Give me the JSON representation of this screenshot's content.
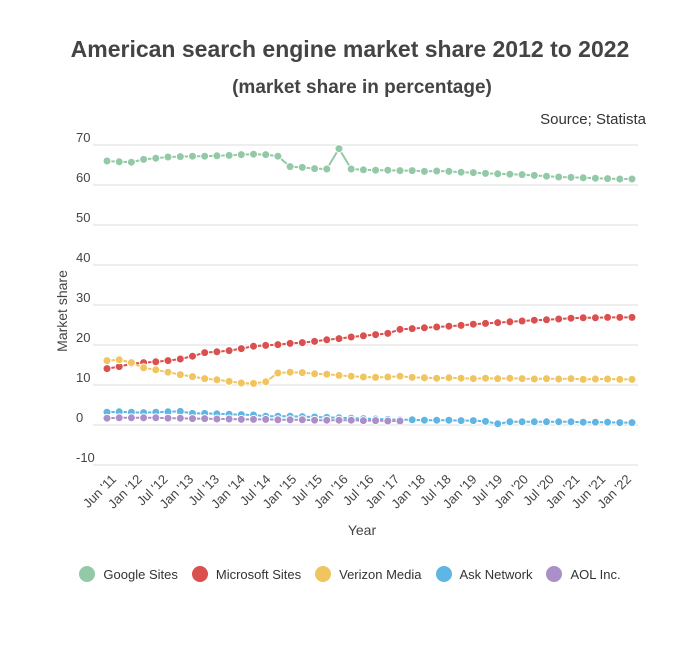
{
  "chart_data": {
    "type": "line",
    "title": "American search engine market share 2012 to 2022",
    "subtitle": "(market share in percentage)",
    "source": "Source; Statista",
    "xlabel": "Year",
    "ylabel": "Market share",
    "ylim": [
      -10,
      70
    ],
    "yticks": [
      70,
      60,
      50,
      40,
      30,
      20,
      10,
      0,
      -10
    ],
    "grid": true,
    "legend_position": "bottom",
    "x_tick_labels": [
      "Jun '11",
      "Jan '12",
      "Jul '12",
      "Jan '13",
      "Jul '13",
      "Jan '14",
      "Jul '14",
      "Jan '15",
      "Jul '15",
      "Jan '16",
      "Jul '16",
      "Jan '17",
      "Jan '18",
      "Jul '18",
      "Jan '19",
      "Jul '19",
      "Jan '20",
      "Jul '20",
      "Jan '21",
      "Jun '21",
      "Jan '22"
    ],
    "series": [
      {
        "name": "Google Sites",
        "color": "#93c9a7",
        "values": [
          66.0,
          65.8,
          65.7,
          66.4,
          66.7,
          67.0,
          67.1,
          67.2,
          67.2,
          67.3,
          67.4,
          67.6,
          67.7,
          67.6,
          67.2,
          64.6,
          64.4,
          64.1,
          64.0,
          69.1,
          64.0,
          63.8,
          63.7,
          63.7,
          63.6,
          63.6,
          63.4,
          63.5,
          63.4,
          63.2,
          63.1,
          62.9,
          62.8,
          62.7,
          62.6,
          62.4,
          62.2,
          62.0,
          61.9,
          61.8,
          61.7,
          61.6,
          61.5,
          61.5
        ]
      },
      {
        "name": "Microsoft Sites",
        "color": "#d9504f",
        "values": [
          14.1,
          14.6,
          15.3,
          15.6,
          15.8,
          16.1,
          16.5,
          17.2,
          18.1,
          18.3,
          18.6,
          19.1,
          19.7,
          19.9,
          20.1,
          20.4,
          20.6,
          20.9,
          21.3,
          21.6,
          22.0,
          22.3,
          22.6,
          22.9,
          23.9,
          24.1,
          24.3,
          24.5,
          24.7,
          24.9,
          25.2,
          25.4,
          25.6,
          25.8,
          26.0,
          26.2,
          26.3,
          26.5,
          26.7,
          26.8,
          26.8,
          26.9,
          26.9,
          26.9
        ]
      },
      {
        "name": "Verizon Media",
        "color": "#f0c55f",
        "values": [
          16.1,
          16.3,
          15.6,
          14.3,
          13.8,
          13.2,
          12.6,
          12.1,
          11.6,
          11.3,
          10.9,
          10.5,
          10.4,
          10.8,
          13.0,
          13.2,
          13.1,
          12.8,
          12.7,
          12.4,
          12.2,
          12.0,
          11.9,
          12.0,
          12.2,
          11.9,
          11.8,
          11.7,
          11.8,
          11.7,
          11.6,
          11.7,
          11.6,
          11.7,
          11.6,
          11.5,
          11.6,
          11.5,
          11.6,
          11.4,
          11.5,
          11.5,
          11.4,
          11.4
        ]
      },
      {
        "name": "Ask Network",
        "color": "#5fb6e4",
        "values": [
          3.2,
          3.3,
          3.2,
          3.1,
          3.2,
          3.3,
          3.4,
          2.9,
          2.9,
          2.8,
          2.7,
          2.6,
          2.5,
          2.2,
          2.2,
          2.2,
          2.1,
          2.0,
          1.9,
          1.8,
          1.7,
          1.6,
          1.5,
          1.4,
          1.3,
          1.3,
          1.2,
          1.2,
          1.2,
          1.1,
          1.1,
          0.9,
          0.3,
          0.8,
          0.8,
          0.8,
          0.8,
          0.8,
          0.8,
          0.7,
          0.7,
          0.7,
          0.6,
          0.6
        ]
      },
      {
        "name": "AOL Inc.",
        "color": "#aa8fc9",
        "values": [
          1.7,
          1.8,
          1.8,
          1.8,
          1.8,
          1.7,
          1.7,
          1.6,
          1.6,
          1.5,
          1.5,
          1.4,
          1.4,
          1.4,
          1.3,
          1.3,
          1.3,
          1.2,
          1.2,
          1.2,
          1.2,
          1.1,
          1.1,
          1.0,
          1.0
        ]
      }
    ]
  }
}
